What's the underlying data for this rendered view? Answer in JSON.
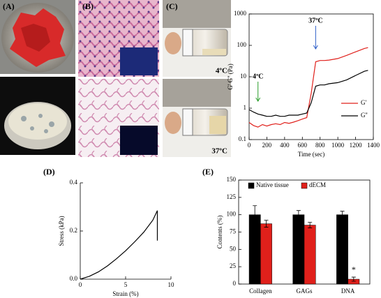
{
  "panel_labels": [
    "(A)",
    "(B)",
    "(C)",
    "(D)",
    "(E)"
  ],
  "photo_captions": [
    "4ºC",
    "37ºC"
  ],
  "chart_data": [
    {
      "type": "line",
      "x_label": "Time (sec)",
      "y_label": "G' G'' (Pa)",
      "x": [
        0,
        50,
        100,
        150,
        200,
        250,
        300,
        350,
        400,
        450,
        500,
        550,
        600,
        650,
        700,
        750,
        800,
        850,
        900,
        1000,
        1100,
        1200,
        1300,
        1340
      ],
      "series": [
        {
          "name": "G'",
          "color": "#e0201b",
          "values": [
            0.35,
            0.28,
            0.25,
            0.3,
            0.27,
            0.3,
            0.32,
            0.3,
            0.35,
            0.33,
            0.36,
            0.4,
            0.45,
            0.5,
            3,
            30,
            33,
            33,
            34,
            38,
            48,
            62,
            80,
            85
          ]
        },
        {
          "name": "G''",
          "color": "#000000",
          "values": [
            0.9,
            0.75,
            0.65,
            0.6,
            0.55,
            0.55,
            0.6,
            0.55,
            0.55,
            0.6,
            0.6,
            0.6,
            0.65,
            0.7,
            1.5,
            5,
            5.5,
            5.5,
            6,
            6.5,
            8,
            11,
            15,
            16
          ]
        }
      ],
      "xlim": [
        0,
        1400
      ],
      "xticks": [
        0,
        200,
        400,
        600,
        800,
        1000,
        1200,
        1400
      ],
      "ylim": [
        0.1,
        1000
      ],
      "yticks": [
        0.1,
        1,
        10,
        100,
        1000
      ],
      "log_y": true,
      "legend": "lower right",
      "annotations": [
        {
          "text": "4ºC",
          "color": "#2a9d2a"
        },
        {
          "text": "37ºC",
          "color": "#2f5fc8"
        }
      ]
    },
    {
      "type": "line",
      "x_label": "Strain (%)",
      "y_label": "Stress (kPa)",
      "x": [
        0,
        1,
        2,
        3,
        4,
        5,
        6,
        7,
        8,
        8.5,
        8.5
      ],
      "series": [
        {
          "color": "#000000",
          "values": [
            0,
            0.012,
            0.03,
            0.055,
            0.085,
            0.118,
            0.155,
            0.195,
            0.245,
            0.285,
            0.16
          ]
        }
      ],
      "xlim": [
        0,
        10
      ],
      "xticks": [
        0,
        5,
        10
      ],
      "ylim": [
        0,
        0.4
      ],
      "yticks": [
        {
          "value": 0,
          "label": "0.0"
        },
        0.2,
        0.4
      ]
    },
    {
      "type": "bar",
      "y_label": "Contents (%)",
      "categories": [
        "Collagen",
        "GAGs",
        "DNA"
      ],
      "series": [
        {
          "name": "Native tissue",
          "color": "#000000",
          "values": [
            100,
            100,
            100
          ],
          "errors": [
            13,
            6,
            5
          ]
        },
        {
          "name": "dECM",
          "color": "#e0201b",
          "values": [
            87,
            85,
            7
          ],
          "errors": [
            5,
            4,
            3
          ]
        }
      ],
      "ylim": [
        0,
        150
      ],
      "yticks": [
        0,
        25,
        50,
        75,
        100,
        125,
        150
      ],
      "legend": "top",
      "annotations": [
        {
          "text": "*"
        }
      ]
    }
  ]
}
